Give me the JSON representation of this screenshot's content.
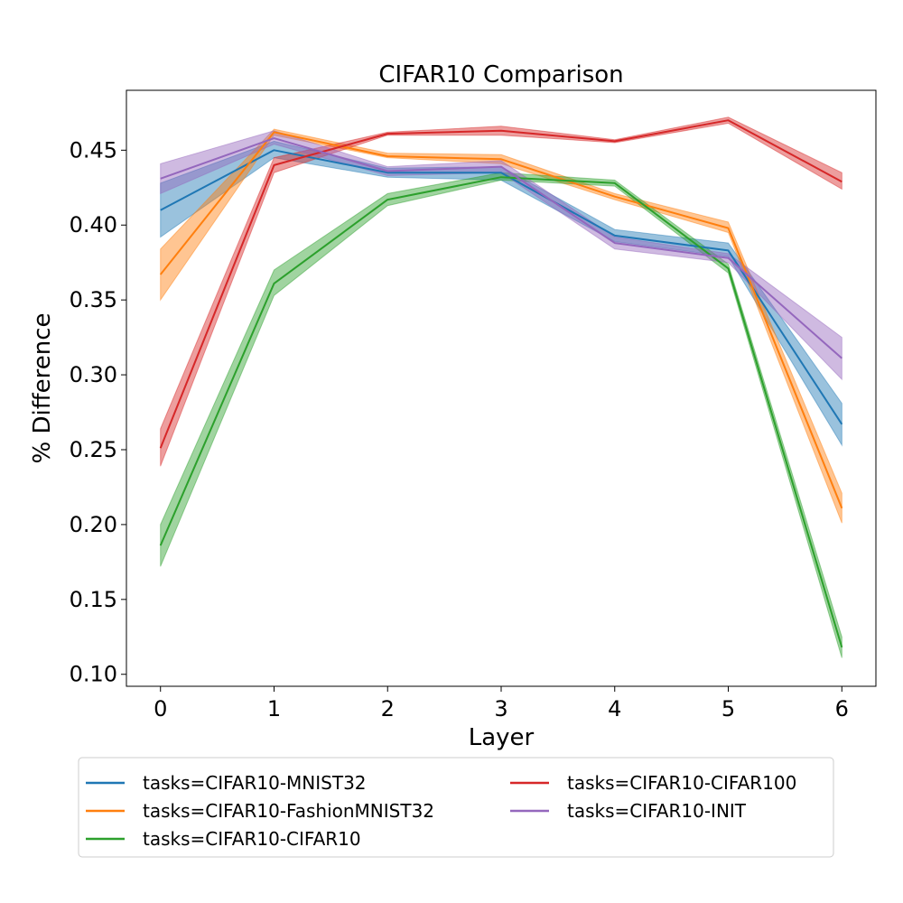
{
  "chart_data": {
    "type": "line",
    "title": "CIFAR10 Comparison",
    "xlabel": "Layer",
    "ylabel": "% Difference",
    "x": [
      0,
      1,
      2,
      3,
      4,
      5,
      6
    ],
    "xlim": [
      -0.3,
      6.3
    ],
    "ylim": [
      0.092,
      0.49
    ],
    "xticks": [
      0,
      1,
      2,
      3,
      4,
      5,
      6
    ],
    "yticks": [
      0.1,
      0.15,
      0.2,
      0.25,
      0.3,
      0.35,
      0.4,
      0.45
    ],
    "grid": false,
    "legend_position": "below",
    "series": [
      {
        "name": "tasks=CIFAR10-MNIST32",
        "color": "#1f77b4",
        "values": [
          0.41,
          0.45,
          0.435,
          0.435,
          0.393,
          0.383,
          0.267
        ],
        "lower": [
          0.392,
          0.445,
          0.432,
          0.43,
          0.389,
          0.379,
          0.253
        ],
        "upper": [
          0.428,
          0.456,
          0.438,
          0.439,
          0.397,
          0.388,
          0.281
        ]
      },
      {
        "name": "tasks=CIFAR10-FashionMNIST32",
        "color": "#ff7f0e",
        "values": [
          0.367,
          0.462,
          0.446,
          0.444,
          0.419,
          0.398,
          0.211
        ],
        "lower": [
          0.35,
          0.46,
          0.445,
          0.441,
          0.417,
          0.395,
          0.201
        ],
        "upper": [
          0.384,
          0.464,
          0.448,
          0.447,
          0.421,
          0.402,
          0.221
        ]
      },
      {
        "name": "tasks=CIFAR10-CIFAR10",
        "color": "#2ca02c",
        "values": [
          0.186,
          0.361,
          0.417,
          0.432,
          0.428,
          0.371,
          0.118
        ],
        "lower": [
          0.172,
          0.353,
          0.413,
          0.43,
          0.426,
          0.368,
          0.111
        ],
        "upper": [
          0.2,
          0.37,
          0.421,
          0.435,
          0.43,
          0.374,
          0.125
        ]
      },
      {
        "name": "tasks=CIFAR10-CIFAR100",
        "color": "#d62728",
        "values": [
          0.251,
          0.44,
          0.461,
          0.463,
          0.456,
          0.47,
          0.429
        ],
        "lower": [
          0.239,
          0.435,
          0.46,
          0.46,
          0.455,
          0.468,
          0.424
        ],
        "upper": [
          0.264,
          0.445,
          0.462,
          0.466,
          0.457,
          0.472,
          0.435
        ]
      },
      {
        "name": "tasks=CIFAR10-INIT",
        "color": "#9467bd",
        "values": [
          0.431,
          0.458,
          0.436,
          0.439,
          0.388,
          0.378,
          0.311
        ],
        "lower": [
          0.421,
          0.454,
          0.433,
          0.435,
          0.384,
          0.375,
          0.297
        ],
        "upper": [
          0.441,
          0.463,
          0.439,
          0.443,
          0.392,
          0.381,
          0.325
        ]
      }
    ]
  }
}
